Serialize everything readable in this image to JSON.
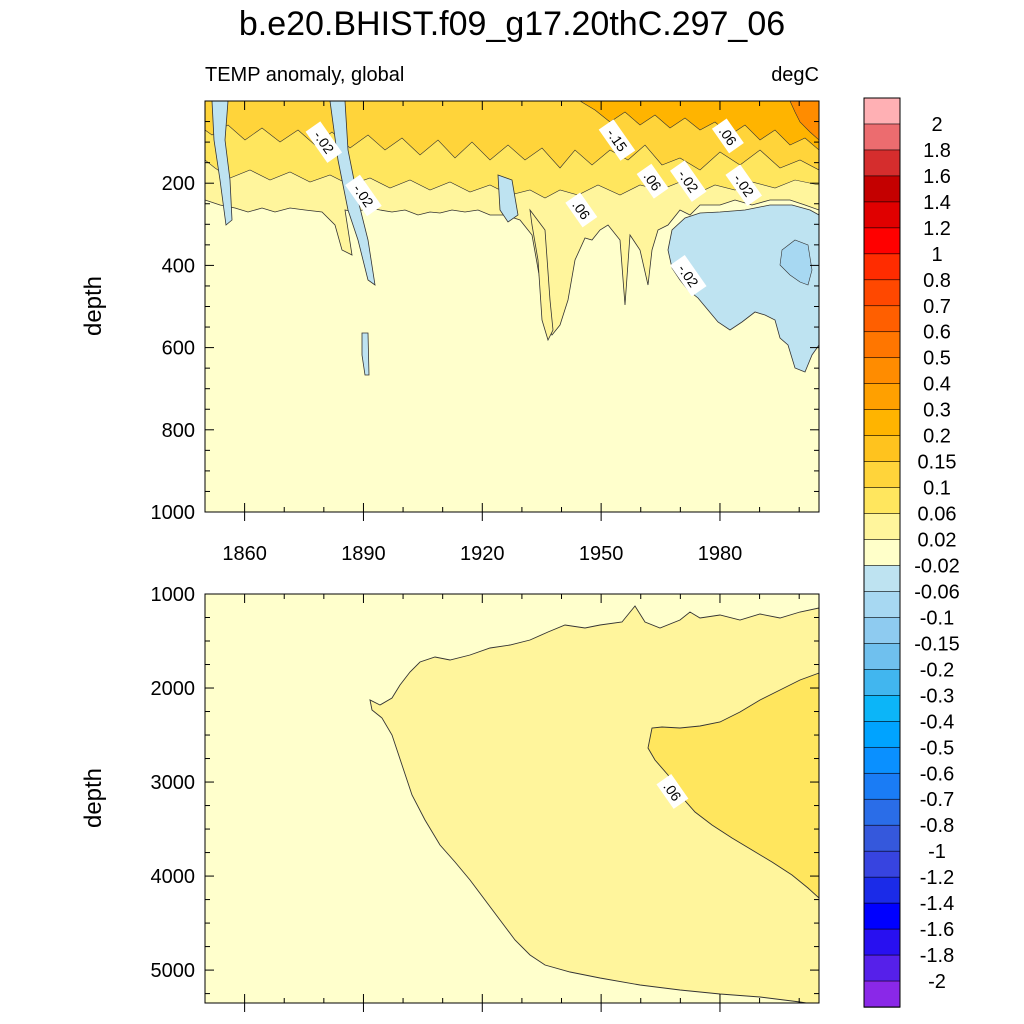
{
  "title": "b.e20.BHIST.f09_g17.20thC.297_06",
  "chart_data": [
    {
      "type": "heatmap",
      "panel": "upper",
      "title_left": "TEMP anomaly, global",
      "title_right": "degC",
      "ylabel": "depth",
      "xlim": [
        1850,
        2005
      ],
      "ylim": [
        0,
        1000
      ],
      "y_reversed": true,
      "x_ticks": [
        1860,
        1890,
        1920,
        1950,
        1980
      ],
      "x_tick_labels": [
        "1860",
        "1890",
        "1920",
        "1950",
        "1980"
      ],
      "y_ticks": [
        200,
        400,
        600,
        800,
        1000
      ],
      "y_tick_labels": [
        "200",
        "400",
        "600",
        "800",
        "1000"
      ],
      "contour_labels": [
        {
          "text": "-.02",
          "x": 1880,
          "y": 100
        },
        {
          "text": "-.02",
          "x": 1890,
          "y": 230
        },
        {
          "text": "-.15",
          "x": 1954,
          "y": 95
        },
        {
          "text": ".06",
          "x": 1982,
          "y": 85
        },
        {
          "text": ".06",
          "x": 1945,
          "y": 265
        },
        {
          "text": ".06",
          "x": 1963,
          "y": 195
        },
        {
          "text": "-.02",
          "x": 1972,
          "y": 195
        },
        {
          "text": "-.02",
          "x": 1986,
          "y": 205
        },
        {
          "text": "-.02",
          "x": 1972,
          "y": 425
        }
      ]
    },
    {
      "type": "heatmap",
      "panel": "lower",
      "ylabel": "depth",
      "xlim": [
        1850,
        2005
      ],
      "ylim": [
        1000,
        5350
      ],
      "y_reversed": true,
      "y_ticks": [
        1000,
        2000,
        3000,
        4000,
        5000
      ],
      "y_tick_labels": [
        "1000",
        "2000",
        "3000",
        "4000",
        "5000"
      ],
      "contour_labels": [
        {
          "text": ".06",
          "x": 1968,
          "y": 3100
        }
      ]
    }
  ],
  "colorbar": {
    "labels": [
      "2",
      "1.8",
      "1.6",
      "1.4",
      "1.2",
      "1",
      "0.8",
      "0.7",
      "0.6",
      "0.5",
      "0.4",
      "0.3",
      "0.2",
      "0.15",
      "0.1",
      "0.06",
      "0.02",
      "-0.02",
      "-0.06",
      "-0.1",
      "-0.15",
      "-0.2",
      "-0.3",
      "-0.4",
      "-0.5",
      "-0.6",
      "-0.7",
      "-0.8",
      "-1",
      "-1.2",
      "-1.4",
      "-1.6",
      "-1.8",
      "-2"
    ],
    "colors": [
      "#ffb0b4",
      "#ec6c6f",
      "#d52d2d",
      "#c40000",
      "#e00000",
      "#ff0000",
      "#ff2c00",
      "#ff4800",
      "#ff5f00",
      "#ff7600",
      "#ff8c00",
      "#ffa000",
      "#ffb400",
      "#ffc31e",
      "#ffd43a",
      "#ffe65e",
      "#fff59c",
      "#ffffc9",
      "#bee3f1",
      "#a7d8f2",
      "#8ecbf0",
      "#6fc0ee",
      "#41b6ef",
      "#0cb5f8",
      "#00a3ff",
      "#0a90ff",
      "#1a7cf5",
      "#2a6de8",
      "#3558dc",
      "#3744e0",
      "#1b2be8",
      "#0000ff",
      "#2810f0",
      "#5620ea",
      "#8a28e8"
    ]
  },
  "colors": {
    "background": "#ffffcc",
    "warm_fill": "#fff59c",
    "warmer_fill": "#ffe65e",
    "cool_fill": "#bee3f1"
  }
}
